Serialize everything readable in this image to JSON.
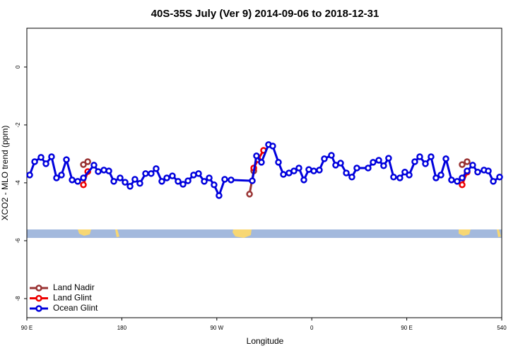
{
  "chart_data": {
    "type": "line",
    "title": "40S-35S July (Ver 9)   2014-09-06 to 2018-12-31",
    "x_label": "Longitude",
    "y_label": "XCO2 - MLO trend (ppm)",
    "xlim": [
      90,
      540
    ],
    "ylim": [
      -8.66,
      1.34
    ],
    "xticks": [
      {
        "value": 90,
        "label": "90 E"
      },
      180,
      {
        "value": 270,
        "label": "90 W"
      },
      {
        "value": 360,
        "label": "0"
      },
      {
        "value": 450,
        "label": "90 E"
      },
      540
    ],
    "yticks": [
      -8,
      -6,
      -4,
      -2,
      0
    ],
    "legend": "bottom-left",
    "series": [
      {
        "name": "Land Nadir",
        "color": "#993333",
        "x": [
          143.6,
          147.7,
          null,
          301.0,
          305.0,
          null,
          502.5,
          507.2
        ],
        "values": [
          -3.37,
          -3.27,
          null,
          -4.39,
          -3.59,
          null,
          -3.37,
          -3.27
        ]
      },
      {
        "name": "Land Glint",
        "color": "#ee0000",
        "x": [
          143.6,
          147.7,
          null,
          305.0,
          309.0,
          314.3,
          null,
          502.5,
          507.2
        ],
        "values": [
          -4.07,
          -3.61,
          null,
          -3.49,
          -3.2,
          -2.88,
          null,
          -4.07,
          -3.63
        ]
      },
      {
        "name": "Ocean Glint",
        "color": "#0000dd",
        "x": [
          92.7,
          97.4,
          103.4,
          108.1,
          113.4,
          118.1,
          122.8,
          127.5,
          132.9,
          138.2,
          143.6,
          153.6,
          157.6,
          163.0,
          167.7,
          172.4,
          178.4,
          183.1,
          187.8,
          192.4,
          197.1,
          202.5,
          207.8,
          212.5,
          217.9,
          222.6,
          227.9,
          233.3,
          238.0,
          242.7,
          248.0,
          252.7,
          258.1,
          262.8,
          267.4,
          272.1,
          277.5,
          283.5,
          303.6,
          307.6,
          312.3,
          319.0,
          323.0,
          328.4,
          333.1,
          338.4,
          343.1,
          347.8,
          352.5,
          357.2,
          361.9,
          367.2,
          371.9,
          378.6,
          382.6,
          387.3,
          392.7,
          398.0,
          402.7,
          413.4,
          418.1,
          423.5,
          428.1,
          432.8,
          437.5,
          443.5,
          448.2,
          452.3,
          457.6,
          462.3,
          467.7,
          473.0,
          477.7,
          482.4,
          487.1,
          492.4,
          497.8,
          502.5,
          507.2,
          512.5,
          517.2,
          523.2,
          527.3,
          532.0,
          538.0
        ],
        "values": [
          -3.73,
          -3.27,
          -3.12,
          -3.34,
          -3.1,
          -3.83,
          -3.73,
          -3.2,
          -3.9,
          -3.95,
          -3.83,
          -3.39,
          -3.61,
          -3.56,
          -3.59,
          -3.95,
          -3.83,
          -3.98,
          -4.12,
          -3.88,
          -4.02,
          -3.68,
          -3.68,
          -3.51,
          -3.95,
          -3.83,
          -3.76,
          -3.95,
          -4.05,
          -3.93,
          -3.73,
          -3.68,
          -3.95,
          -3.83,
          -4.07,
          -4.44,
          -3.88,
          -3.9,
          -3.93,
          -3.07,
          -3.29,
          -2.68,
          -2.73,
          -3.29,
          -3.71,
          -3.66,
          -3.59,
          -3.49,
          -3.9,
          -3.54,
          -3.59,
          -3.56,
          -3.17,
          -3.05,
          -3.39,
          -3.32,
          -3.66,
          -3.8,
          -3.49,
          -3.49,
          -3.29,
          -3.22,
          -3.41,
          -3.15,
          -3.8,
          -3.83,
          -3.63,
          -3.73,
          -3.27,
          -3.1,
          -3.34,
          -3.1,
          -3.83,
          -3.73,
          -3.17,
          -3.9,
          -3.95,
          -3.83,
          -3.59,
          -3.39,
          -3.63,
          -3.56,
          -3.59,
          -3.95,
          -3.8
        ]
      }
    ]
  }
}
